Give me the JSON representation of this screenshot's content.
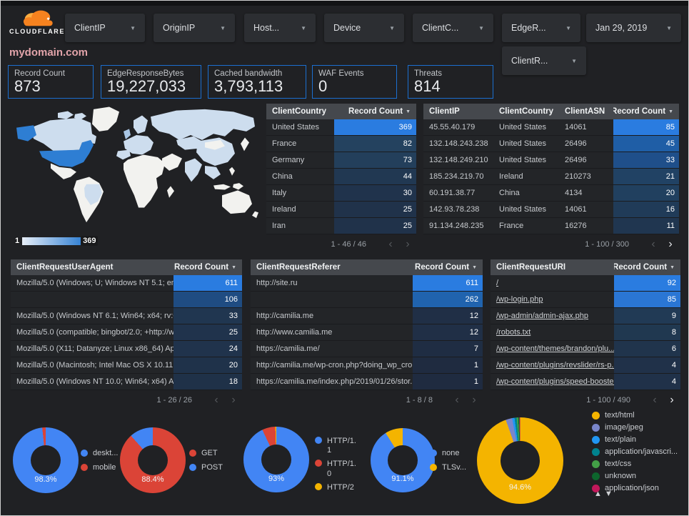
{
  "brand": {
    "logo_text": "CLOUDFLARE"
  },
  "filters": {
    "chips": [
      {
        "label": "ClientIP"
      },
      {
        "label": "OriginIP"
      },
      {
        "label": "Host..."
      },
      {
        "label": "Device"
      },
      {
        "label": "ClientC..."
      },
      {
        "label": "EdgeR..."
      }
    ],
    "date": {
      "label": "Jan 29, 2019"
    },
    "extra": {
      "label": "ClientR..."
    }
  },
  "page": {
    "title": "mydomain.com"
  },
  "scorecards": [
    {
      "label": "Record Count",
      "value": "873"
    },
    {
      "label": "EdgeResponseBytes",
      "value": "19,227,033"
    },
    {
      "label": "Cached bandwidth",
      "value": "3,793,113"
    },
    {
      "label": "WAF Events",
      "value": "0"
    },
    {
      "label": "Threats",
      "value": "814"
    }
  ],
  "map": {
    "legend_min": "1",
    "legend_max": "369"
  },
  "tables": [
    {
      "name": "client-country",
      "headers": [
        "ClientCountry",
        "Record Count"
      ],
      "rows": [
        [
          "United States",
          "369"
        ],
        [
          "France",
          "82"
        ],
        [
          "Germany",
          "73"
        ],
        [
          "China",
          "44"
        ],
        [
          "Italy",
          "30"
        ],
        [
          "Ireland",
          "25"
        ],
        [
          "Iran",
          "25"
        ]
      ],
      "bar_colors": [
        "#2A7CE0",
        "#24425F",
        "#233F5B",
        "#213852",
        "#20334C",
        "#20324A",
        "#20324A"
      ],
      "pagination": "1 - 46 / 46",
      "prev": false,
      "next": false
    },
    {
      "name": "client-ip",
      "headers": [
        "ClientIP",
        "ClientCountry",
        "ClientASN",
        "Record Count"
      ],
      "rows": [
        [
          "45.55.40.179",
          "United States",
          "14061",
          "85"
        ],
        [
          "132.148.243.238",
          "United States",
          "26496",
          "45"
        ],
        [
          "132.148.249.210",
          "United States",
          "26496",
          "33"
        ],
        [
          "185.234.219.70",
          "Ireland",
          "210273",
          "21"
        ],
        [
          "60.191.38.77",
          "China",
          "4134",
          "20"
        ],
        [
          "142.93.78.238",
          "United States",
          "14061",
          "16"
        ],
        [
          "91.134.248.235",
          "France",
          "16276",
          "11"
        ]
      ],
      "bar_colors": [
        "#2A7CE0",
        "#1F5EA6",
        "#1F4F8A",
        "#214264",
        "#21405F",
        "#203B58",
        "#203650"
      ],
      "pagination": "1 - 100 / 300",
      "prev": false,
      "next": true
    },
    {
      "name": "user-agent",
      "headers": [
        "ClientRequestUserAgent",
        "Record Count"
      ],
      "rows": [
        [
          "Mozilla/5.0 (Windows; U; Windows NT 5.1; en-U...",
          "611"
        ],
        [
          "",
          "106"
        ],
        [
          "Mozilla/5.0 (Windows NT 6.1; Win64; x64; rv:64....",
          "33"
        ],
        [
          "Mozilla/5.0 (compatible; bingbot/2.0; +http://w...",
          "25"
        ],
        [
          "Mozilla/5.0 (X11; Datanyze; Linux x86_64) Appl...",
          "24"
        ],
        [
          "Mozilla/5.0 (Macintosh; Intel Mac OS X 10.11; r...",
          "20"
        ],
        [
          "Mozilla/5.0 (Windows NT 10.0; Win64; x64) App...",
          "18"
        ]
      ],
      "bar_colors": [
        "#2A7CE0",
        "#1F4C82",
        "#203650",
        "#20334C",
        "#20334C",
        "#1F324A",
        "#1F3148"
      ],
      "pagination": "1 - 26 / 26",
      "prev": false,
      "next": false
    },
    {
      "name": "referer",
      "headers": [
        "ClientRequestReferer",
        "Record Count"
      ],
      "rows": [
        [
          "http://site.ru",
          "611"
        ],
        [
          "",
          "262"
        ],
        [
          "http://camilia.me",
          "12"
        ],
        [
          "http://www.camilia.me",
          "12"
        ],
        [
          "https://camilia.me/",
          "7"
        ],
        [
          "http://camilia.me/wp-cron.php?doing_wp_cron...",
          "1"
        ],
        [
          "https://camilia.me/index.php/2019/01/26/stor...",
          "1"
        ]
      ],
      "bar_colors": [
        "#2A7CE0",
        "#2063AE",
        "#202F46",
        "#202F46",
        "#1F2D43",
        "#1F2B40",
        "#1F2B40"
      ],
      "pagination": "1 - 8 / 8",
      "prev": false,
      "next": false
    },
    {
      "name": "request-uri",
      "headers": [
        "ClientRequestURI",
        "Record Count"
      ],
      "link_rows": true,
      "rows": [
        [
          "/",
          "92"
        ],
        [
          "/wp-login.php",
          "85"
        ],
        [
          "/wp-admin/admin-ajax.php",
          "9"
        ],
        [
          "/robots.txt",
          "8"
        ],
        [
          "/wp-content/themes/brandon/plu...",
          "6"
        ],
        [
          "/wp-content/plugins/revslider/rs-p...",
          "4"
        ],
        [
          "/wp-content/plugins/speed-booste...",
          "4"
        ]
      ],
      "bar_colors": [
        "#2A7CE0",
        "#2A76D4",
        "#213A55",
        "#203850",
        "#20344C",
        "#203149",
        "#203149"
      ],
      "pagination": "1 - 100 / 490",
      "prev": false,
      "next": true
    }
  ],
  "donuts": [
    {
      "name": "device-type",
      "center_label": "98.3%",
      "slices": [
        {
          "label": "deskt...",
          "color": "#4285F4",
          "pct": 98.3
        },
        {
          "label": "mobile",
          "color": "#DB4437",
          "pct": 1.7
        }
      ]
    },
    {
      "name": "http-method",
      "center_label": "88.4%",
      "slices": [
        {
          "label": "GET",
          "color": "#DB4437",
          "pct": 88.4
        },
        {
          "label": "POST",
          "color": "#4285F4",
          "pct": 11.6
        }
      ]
    },
    {
      "name": "http-protocol",
      "center_label": "93%",
      "slices": [
        {
          "label": "HTTP/1.1",
          "color": "#4285F4",
          "pct": 93
        },
        {
          "label": "HTTP/1.0",
          "color": "#DB4437",
          "pct": 6.5
        },
        {
          "label": "HTTP/2",
          "color": "#F4B400",
          "pct": 0.5
        }
      ]
    },
    {
      "name": "tls-version",
      "center_label": "91.1%",
      "slices": [
        {
          "label": "none",
          "color": "#4285F4",
          "pct": 91.1
        },
        {
          "label": "TLSv...",
          "color": "#F4B400",
          "pct": 8.9
        }
      ]
    },
    {
      "name": "content-type",
      "center_label": "94.6%",
      "has_scroll_arrows": true,
      "slices": [
        {
          "label": "text/html",
          "color": "#F4B400",
          "pct": 94.6
        },
        {
          "label": "image/jpeg",
          "color": "#7986CB",
          "pct": 2.4
        },
        {
          "label": "text/plain",
          "color": "#2196F3",
          "pct": 0.9
        },
        {
          "label": "application/javascri...",
          "color": "#00838F",
          "pct": 0.8
        },
        {
          "label": "text/css",
          "color": "#43A047",
          "pct": 0.6
        },
        {
          "label": "unknown",
          "color": "#0D652D",
          "pct": 0.4
        },
        {
          "label": "application/json",
          "color": "#C2185B",
          "pct": 0.3
        }
      ]
    }
  ],
  "legend_arrows": "▲▼"
}
